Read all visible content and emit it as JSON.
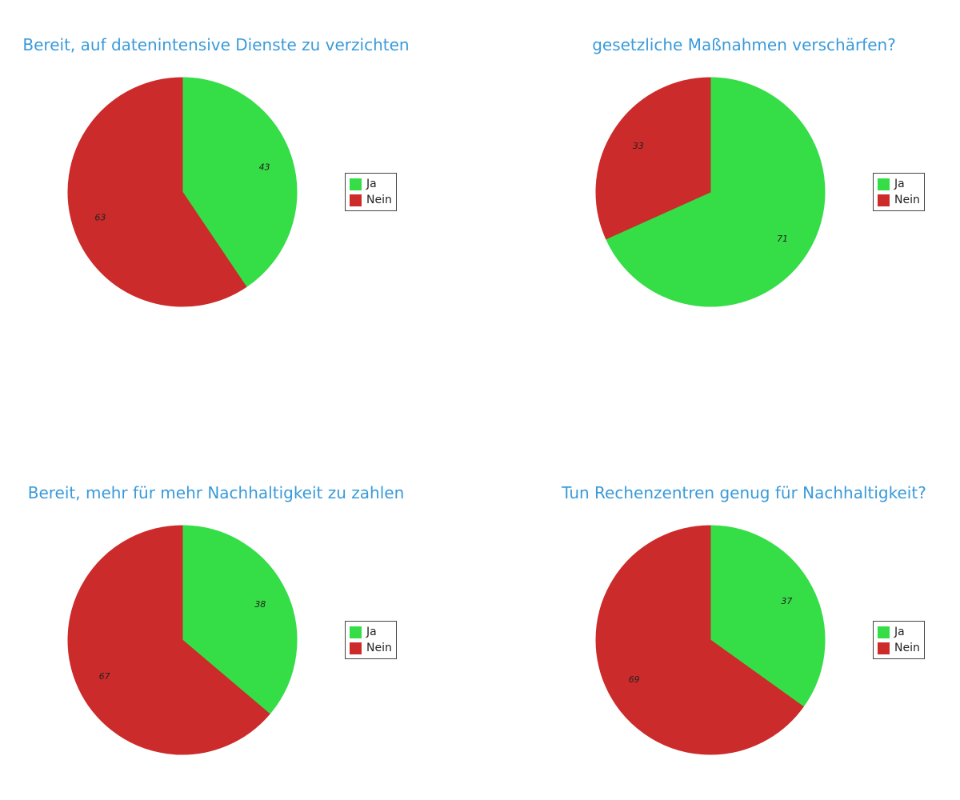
{
  "colors": {
    "ja": "#35dd47",
    "nein": "#cc2b2b",
    "title": "#3a9ad9"
  },
  "chart_data": [
    {
      "type": "pie",
      "title": "Bereit, auf datenintensive Dienste zu verzichten",
      "categories": [
        "Ja",
        "Nein"
      ],
      "values": [
        43,
        63
      ],
      "legend": [
        "Ja",
        "Nein"
      ],
      "legend_position": "right"
    },
    {
      "type": "pie",
      "title": "gesetzliche Maßnahmen verschärfen?",
      "categories": [
        "Ja",
        "Nein"
      ],
      "values": [
        71,
        33
      ],
      "legend": [
        "Ja",
        "Nein"
      ],
      "legend_position": "right"
    },
    {
      "type": "pie",
      "title": "Bereit, mehr für mehr Nachhaltigkeit zu zahlen",
      "categories": [
        "Ja",
        "Nein"
      ],
      "values": [
        38,
        67
      ],
      "legend": [
        "Ja",
        "Nein"
      ],
      "legend_position": "right"
    },
    {
      "type": "pie",
      "title": "Tun Rechenzentren genug für Nachhaltigkeit?",
      "categories": [
        "Ja",
        "Nein"
      ],
      "values": [
        37,
        69
      ],
      "legend": [
        "Ja",
        "Nein"
      ],
      "legend_position": "right"
    }
  ]
}
